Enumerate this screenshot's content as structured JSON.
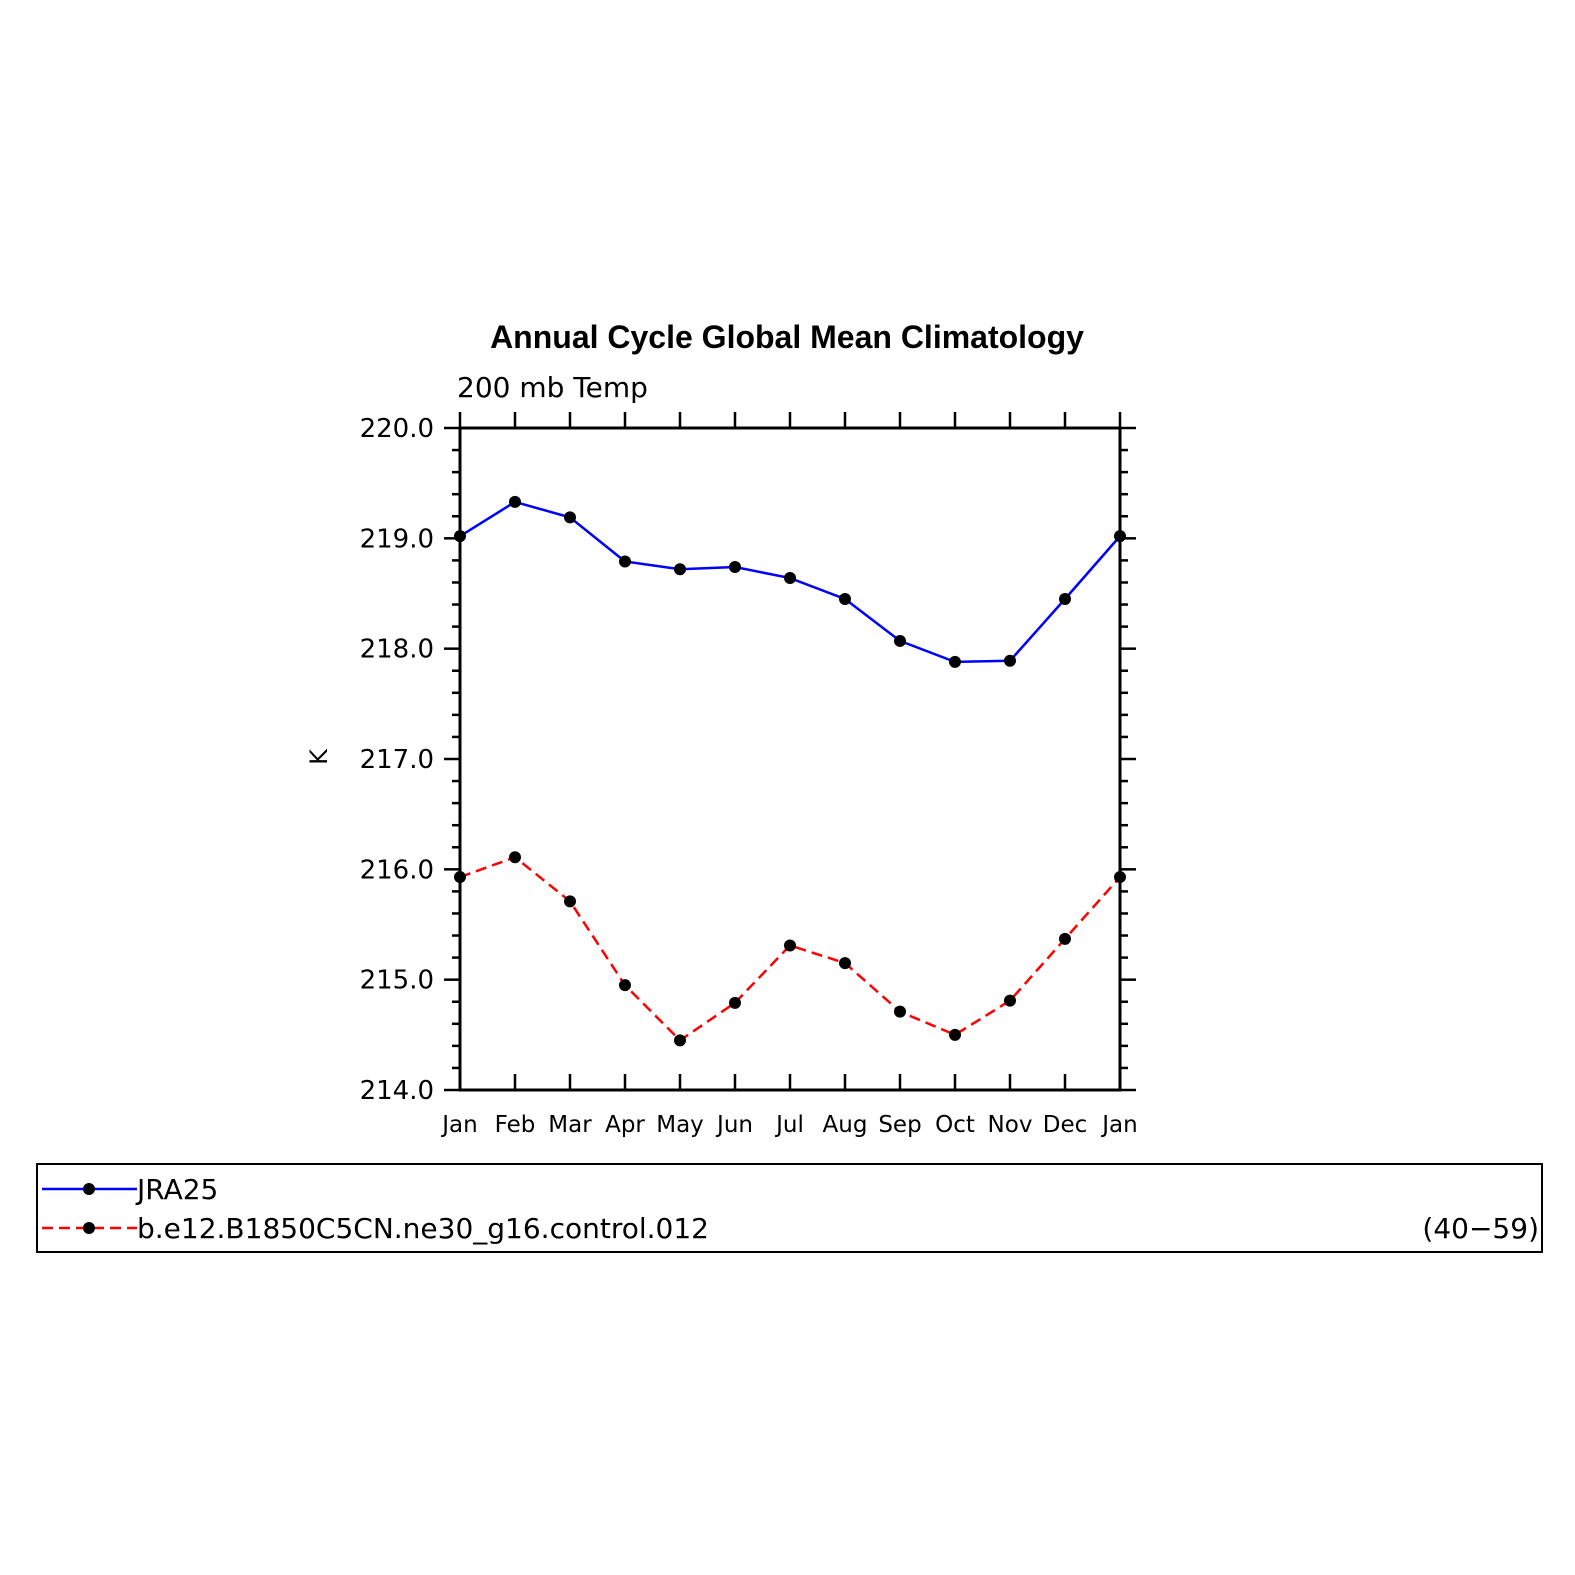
{
  "chart_data": {
    "type": "line",
    "title": "Annual Cycle Global Mean Climatology",
    "subtitle": "200 mb Temp",
    "xlabel": "",
    "ylabel": "K",
    "categories": [
      "Jan",
      "Feb",
      "Mar",
      "Apr",
      "May",
      "Jun",
      "Jul",
      "Aug",
      "Sep",
      "Oct",
      "Nov",
      "Dec",
      "Jan"
    ],
    "ylim": [
      214.0,
      220.0
    ],
    "yticks": [
      "214.0",
      "215.0",
      "216.0",
      "217.0",
      "218.0",
      "219.0",
      "220.0"
    ],
    "grid": false,
    "legend_position": "bottom",
    "series": [
      {
        "name": "JRA25",
        "color": "#0000ff",
        "dash": "solid",
        "values": [
          219.02,
          219.33,
          219.19,
          218.79,
          218.72,
          218.74,
          218.64,
          218.45,
          218.07,
          217.88,
          217.89,
          218.45,
          219.02
        ]
      },
      {
        "name": "b.e12.B1850C5CN.ne30_g16.control.012",
        "color": "#ff0000",
        "dash": "dashed",
        "values": [
          215.93,
          216.11,
          215.71,
          214.95,
          214.45,
          214.79,
          215.31,
          215.15,
          214.71,
          214.5,
          214.81,
          215.37,
          215.93
        ]
      }
    ],
    "marker_color": "#000000"
  },
  "legend": {
    "years_label": "(40−59)"
  }
}
